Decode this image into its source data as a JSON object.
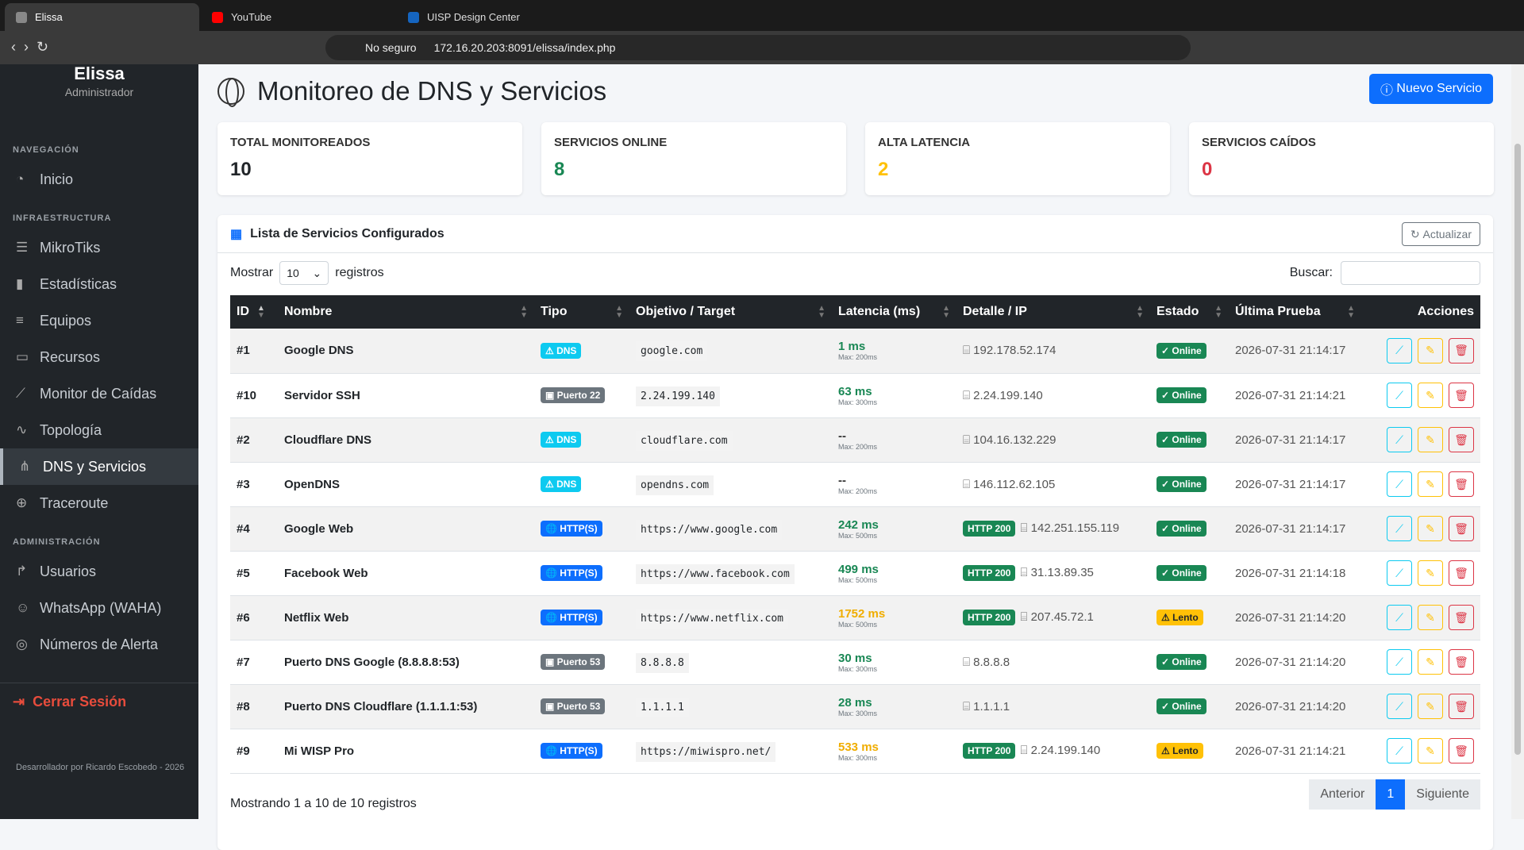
{
  "browser": {
    "tabs": [
      "Elissa",
      "YouTube",
      "UISP Design Center"
    ],
    "security": "No seguro",
    "url": "172.16.20.203:8091/elissa/index.php"
  },
  "sidebar": {
    "brand": "Elissa",
    "role": "Administrador",
    "sections": [
      {
        "title": "NAVEGACIÓN",
        "items": [
          "Inicio"
        ]
      },
      {
        "title": "INFRAESTRUCTURA",
        "items": [
          "MikroTiks",
          "Estadísticas",
          "Equipos",
          "Recursos",
          "Monitor de Caídas",
          "Topología",
          "DNS y Servicios",
          "Traceroute"
        ]
      },
      {
        "title": "ADMINISTRACIÓN",
        "items": [
          "Usuarios",
          "WhatsApp (WAHA)",
          "Números de Alerta"
        ]
      }
    ],
    "active": "DNS y Servicios",
    "logout": "Cerrar Sesión",
    "footer": "Desarrollador por Ricardo Escobedo - 2026"
  },
  "header": {
    "title": "Monitoreo de DNS y Servicios",
    "button": "Nuevo Servicio"
  },
  "stats": [
    {
      "label": "TOTAL MONITOREADOS",
      "value": 10,
      "color": "#212529"
    },
    {
      "label": "SERVICIOS ONLINE",
      "value": 8,
      "color": "#198754"
    },
    {
      "label": "ALTA LATENCIA",
      "value": 2,
      "color": "#ffc107"
    },
    {
      "label": "SERVICIOS CAÍDOS",
      "value": 0,
      "color": "#dc3545"
    }
  ],
  "card": {
    "title": "Lista de Servicios Configurados",
    "refresh": "Actualizar"
  },
  "controls": {
    "show": "Mostrar",
    "page_size": "10",
    "records": "registros",
    "search": "Buscar:"
  },
  "table": {
    "columns": [
      "ID",
      "Nombre",
      "Tipo",
      "Objetivo / Target",
      "Latencia (ms)",
      "Detalle / IP",
      "Estado",
      "Última Prueba",
      "Acciones"
    ],
    "rows": [
      {
        "id": "#1",
        "name": "Google DNS",
        "type": "DNS",
        "target": "google.com",
        "latency": "1 ms",
        "max": "Max: 200ms",
        "ip": "192.178.52.174",
        "status": "Online",
        "last": "2026-07-31 21:14:17"
      },
      {
        "id": "#10",
        "name": "Servidor SSH",
        "type": "Puerto 22",
        "target": "2.24.199.140",
        "latency": "63 ms",
        "max": "Max: 300ms",
        "ip": "2.24.199.140",
        "status": "Online",
        "last": "2026-07-31 21:14:21"
      },
      {
        "id": "#2",
        "name": "Cloudflare DNS",
        "type": "DNS",
        "target": "cloudflare.com",
        "latency": "--",
        "max": "Max: 200ms",
        "ip": "104.16.132.229",
        "status": "Online",
        "last": "2026-07-31 21:14:17"
      },
      {
        "id": "#3",
        "name": "OpenDNS",
        "type": "DNS",
        "target": "opendns.com",
        "latency": "--",
        "max": "Max: 200ms",
        "ip": "146.112.62.105",
        "status": "Online",
        "last": "2026-07-31 21:14:17"
      },
      {
        "id": "#4",
        "name": "Google Web",
        "type": "HTTP(S)",
        "target": "https://www.google.com",
        "latency": "242 ms",
        "max": "Max: 500ms",
        "http": "HTTP 200",
        "ip": "142.251.155.119",
        "status": "Online",
        "last": "2026-07-31 21:14:17"
      },
      {
        "id": "#5",
        "name": "Facebook Web",
        "type": "HTTP(S)",
        "target": "https://www.facebook.com",
        "latency": "499 ms",
        "max": "Max: 500ms",
        "http": "HTTP 200",
        "ip": "31.13.89.35",
        "status": "Online",
        "last": "2026-07-31 21:14:18"
      },
      {
        "id": "#6",
        "name": "Netflix Web",
        "type": "HTTP(S)",
        "target": "https://www.netflix.com",
        "latency": "1752 ms",
        "max": "Max: 500ms",
        "http": "HTTP 200",
        "ip": "207.45.72.1",
        "status": "Lento",
        "last": "2026-07-31 21:14:20"
      },
      {
        "id": "#7",
        "name": "Puerto DNS Google (8.8.8.8:53)",
        "type": "Puerto 53",
        "target": "8.8.8.8",
        "latency": "30 ms",
        "max": "Max: 300ms",
        "ip": "8.8.8.8",
        "status": "Online",
        "last": "2026-07-31 21:14:20"
      },
      {
        "id": "#8",
        "name": "Puerto DNS Cloudflare (1.1.1.1:53)",
        "type": "Puerto 53",
        "target": "1.1.1.1",
        "latency": "28 ms",
        "max": "Max: 300ms",
        "ip": "1.1.1.1",
        "status": "Online",
        "last": "2026-07-31 21:14:20"
      },
      {
        "id": "#9",
        "name": "Mi WISP Pro",
        "type": "HTTP(S)",
        "target": "https://miwispro.net/",
        "latency": "533 ms",
        "max": "Max: 300ms",
        "http": "HTTP 200",
        "ip": "2.24.199.140",
        "status": "Lento",
        "last": "2026-07-31 21:14:21"
      }
    ]
  },
  "footer": {
    "info": "Mostrando 1 a 10 de 10 registros",
    "pagination": [
      "Anterior",
      "1",
      "Siguiente"
    ]
  }
}
